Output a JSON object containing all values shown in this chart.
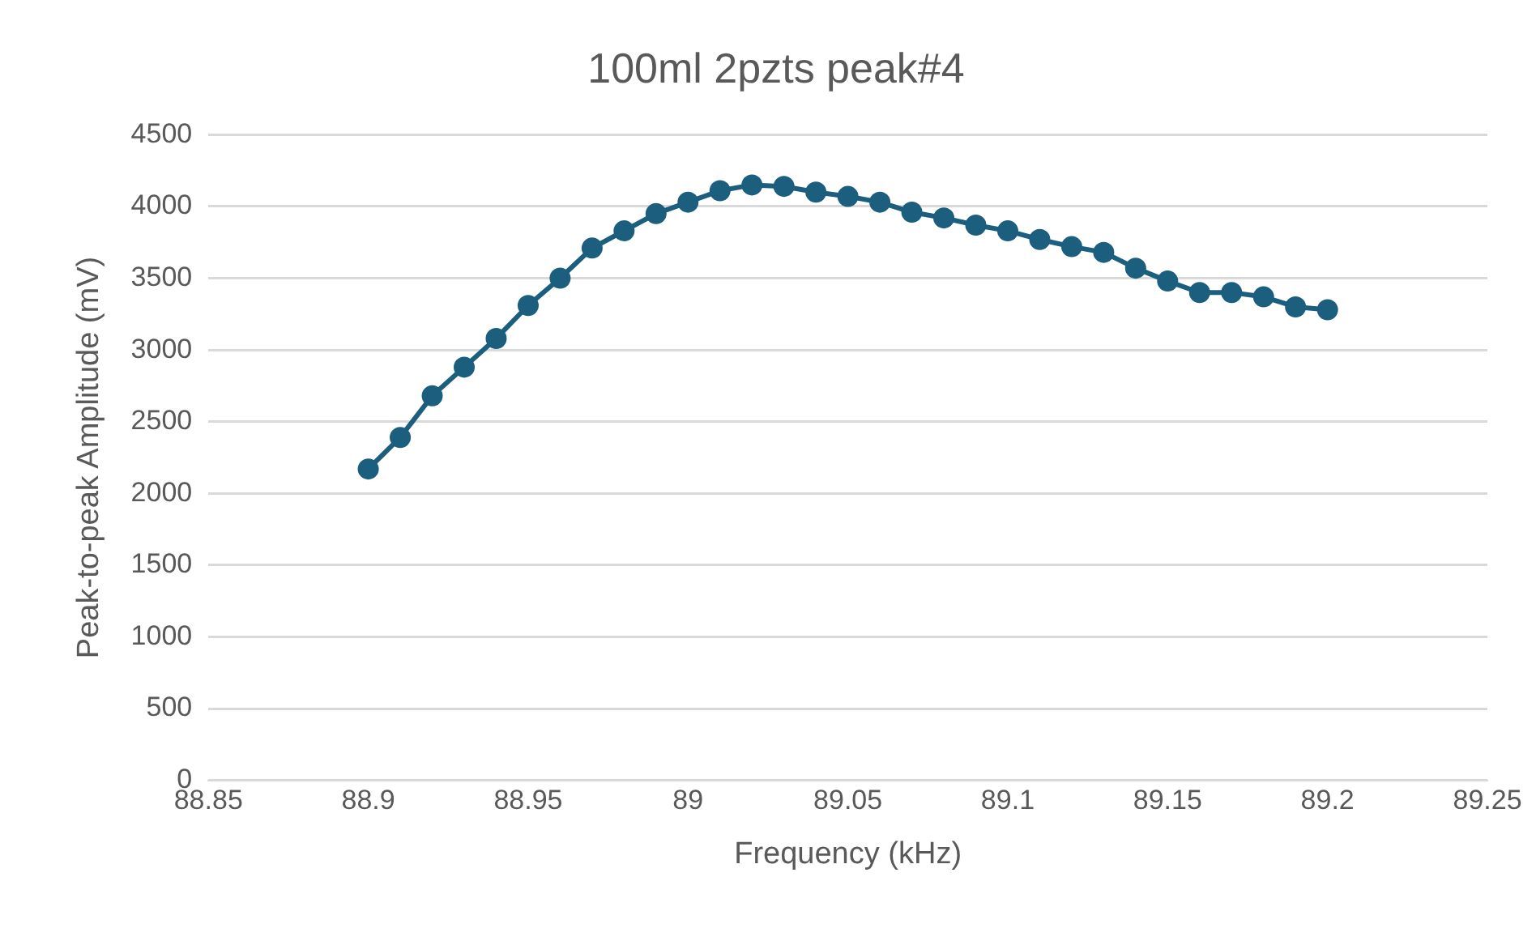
{
  "chart_data": {
    "type": "line",
    "title": "100ml 2pzts peak#4",
    "xlabel": "Frequency (kHz)",
    "ylabel": "Peak-to-peak Amplitude (mV)",
    "x": [
      88.9,
      88.91,
      88.92,
      88.93,
      88.94,
      88.95,
      88.96,
      88.97,
      88.98,
      88.99,
      89.0,
      89.01,
      89.02,
      89.03,
      89.04,
      89.05,
      89.06,
      89.07,
      89.08,
      89.09,
      89.1,
      89.11,
      89.12,
      89.13,
      89.14,
      89.15,
      89.16,
      89.17,
      89.18,
      89.19,
      89.2
    ],
    "series": [
      {
        "color": "#1b5e7e",
        "values": [
          2170,
          2390,
          2680,
          2880,
          3080,
          3310,
          3500,
          3710,
          3830,
          3950,
          4030,
          4110,
          4150,
          4140,
          4100,
          4070,
          4030,
          3960,
          3920,
          3870,
          3830,
          3770,
          3720,
          3680,
          3570,
          3480,
          3400,
          3400,
          3370,
          3300,
          3280
        ]
      }
    ],
    "xlim": [
      88.85,
      89.25
    ],
    "xticks": [
      88.85,
      88.9,
      88.95,
      89,
      89.05,
      89.1,
      89.15,
      89.2,
      89.25
    ],
    "ylim": [
      0,
      4500
    ],
    "yticks": [
      0,
      500,
      1000,
      1500,
      2000,
      2500,
      3000,
      3500,
      4000,
      4500
    ],
    "grid": "y",
    "legend": false,
    "marker": "circle",
    "line_style": "solid"
  }
}
